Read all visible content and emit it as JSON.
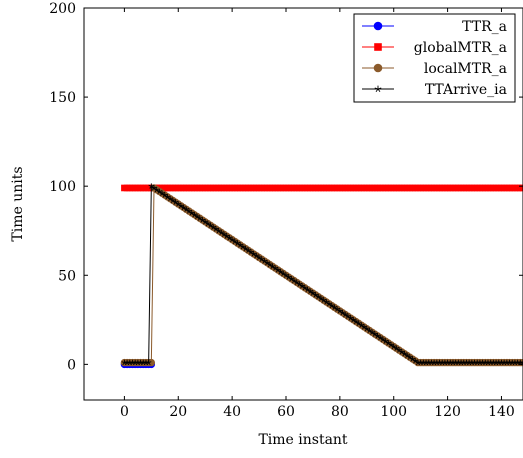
{
  "chart_data": {
    "type": "line",
    "title": "",
    "xlabel": "Time instant",
    "ylabel": "Time units",
    "xlim": [
      -15,
      148
    ],
    "ylim": [
      -20,
      200
    ],
    "xticks": [
      0,
      20,
      40,
      60,
      80,
      100,
      120,
      140
    ],
    "yticks": [
      0,
      50,
      100,
      150,
      200
    ],
    "grid": false,
    "legend_position": "top-right",
    "series": [
      {
        "name": "TTR_a",
        "legend_label": "TTR_a",
        "color": "#0000ff",
        "marker": "circle",
        "points": [
          [
            0,
            0
          ],
          [
            1,
            0
          ],
          [
            2,
            0
          ],
          [
            3,
            0
          ],
          [
            4,
            0
          ],
          [
            5,
            0
          ],
          [
            6,
            0
          ],
          [
            7,
            0
          ],
          [
            8,
            0
          ],
          [
            9,
            0
          ],
          [
            10,
            0
          ]
        ]
      },
      {
        "name": "globalMTR_a",
        "legend_label": "globalMTR_a",
        "color": "#ff0000",
        "marker": "square",
        "x_range": [
          0,
          148
        ],
        "y_constant": 99
      },
      {
        "name": "localMTR_a",
        "legend_label": "localMTR_a",
        "color": "#8b5a2b",
        "marker": "circle",
        "segments": [
          [
            0,
            1
          ],
          [
            10,
            1
          ],
          [
            11,
            99
          ],
          [
            109,
            1
          ],
          [
            148,
            1
          ]
        ]
      },
      {
        "name": "TTArrive_ia",
        "legend_label": "TTArrive_ia",
        "color": "#000000",
        "marker": "star",
        "segments": [
          [
            0,
            1
          ],
          [
            9,
            1
          ],
          [
            10,
            100
          ],
          [
            109,
            1
          ],
          [
            148,
            1
          ]
        ]
      }
    ]
  }
}
